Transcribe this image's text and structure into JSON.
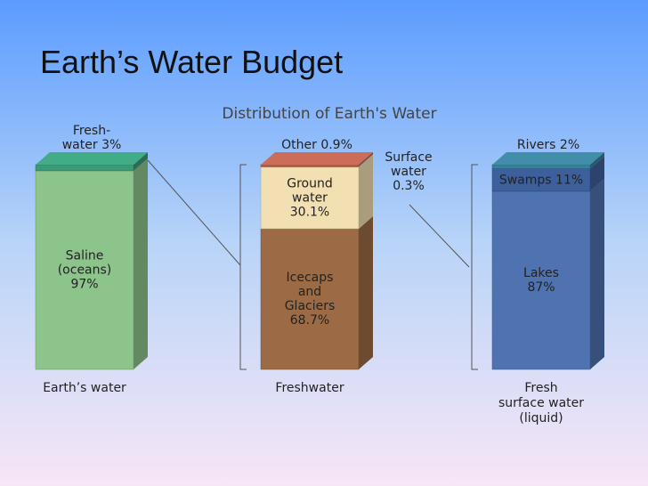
{
  "title": "Earth’s Water Budget",
  "chart_data": {
    "type": "stacked-column",
    "title": "Distribution of Earth's Water",
    "columns": [
      {
        "name": [
          "Earth’s water"
        ],
        "segments": [
          {
            "label": [
              "Saline",
              "(oceans)"
            ],
            "value": 97,
            "value_label": "97%",
            "color": "#8cc48c"
          },
          {
            "label": [
              "Fresh-",
              "water"
            ],
            "value": 3,
            "value_label": "3%",
            "color": "#3a9a78"
          }
        ]
      },
      {
        "name": [
          "Freshwater"
        ],
        "segments": [
          {
            "label": [
              "Icecaps",
              "and",
              "Glaciers"
            ],
            "value": 68.7,
            "value_label": "68.7%",
            "color": "#9c6b45"
          },
          {
            "label": [
              "Ground",
              "water"
            ],
            "value": 30.1,
            "value_label": "30.1%",
            "color": "#f3e0b2"
          },
          {
            "label": [
              "Surface",
              "water"
            ],
            "value": 0.3,
            "value_label": "0.3%",
            "color": "#cdb89c"
          },
          {
            "label": [
              "Other"
            ],
            "value": 0.9,
            "value_label": "0.9%",
            "color": "#b5614f"
          }
        ]
      },
      {
        "name": [
          "Fresh",
          "surface water",
          "(liquid)"
        ],
        "segments": [
          {
            "label": [
              "Lakes"
            ],
            "value": 87,
            "value_label": "87%",
            "color": "#4f72b0"
          },
          {
            "label": [
              "Swamps"
            ],
            "value": 11,
            "value_label": "11%",
            "color": "#3d5f9c"
          },
          {
            "label": [
              "Rivers"
            ],
            "value": 2,
            "value_label": "2%",
            "color": "#3a7f98"
          }
        ]
      }
    ]
  }
}
